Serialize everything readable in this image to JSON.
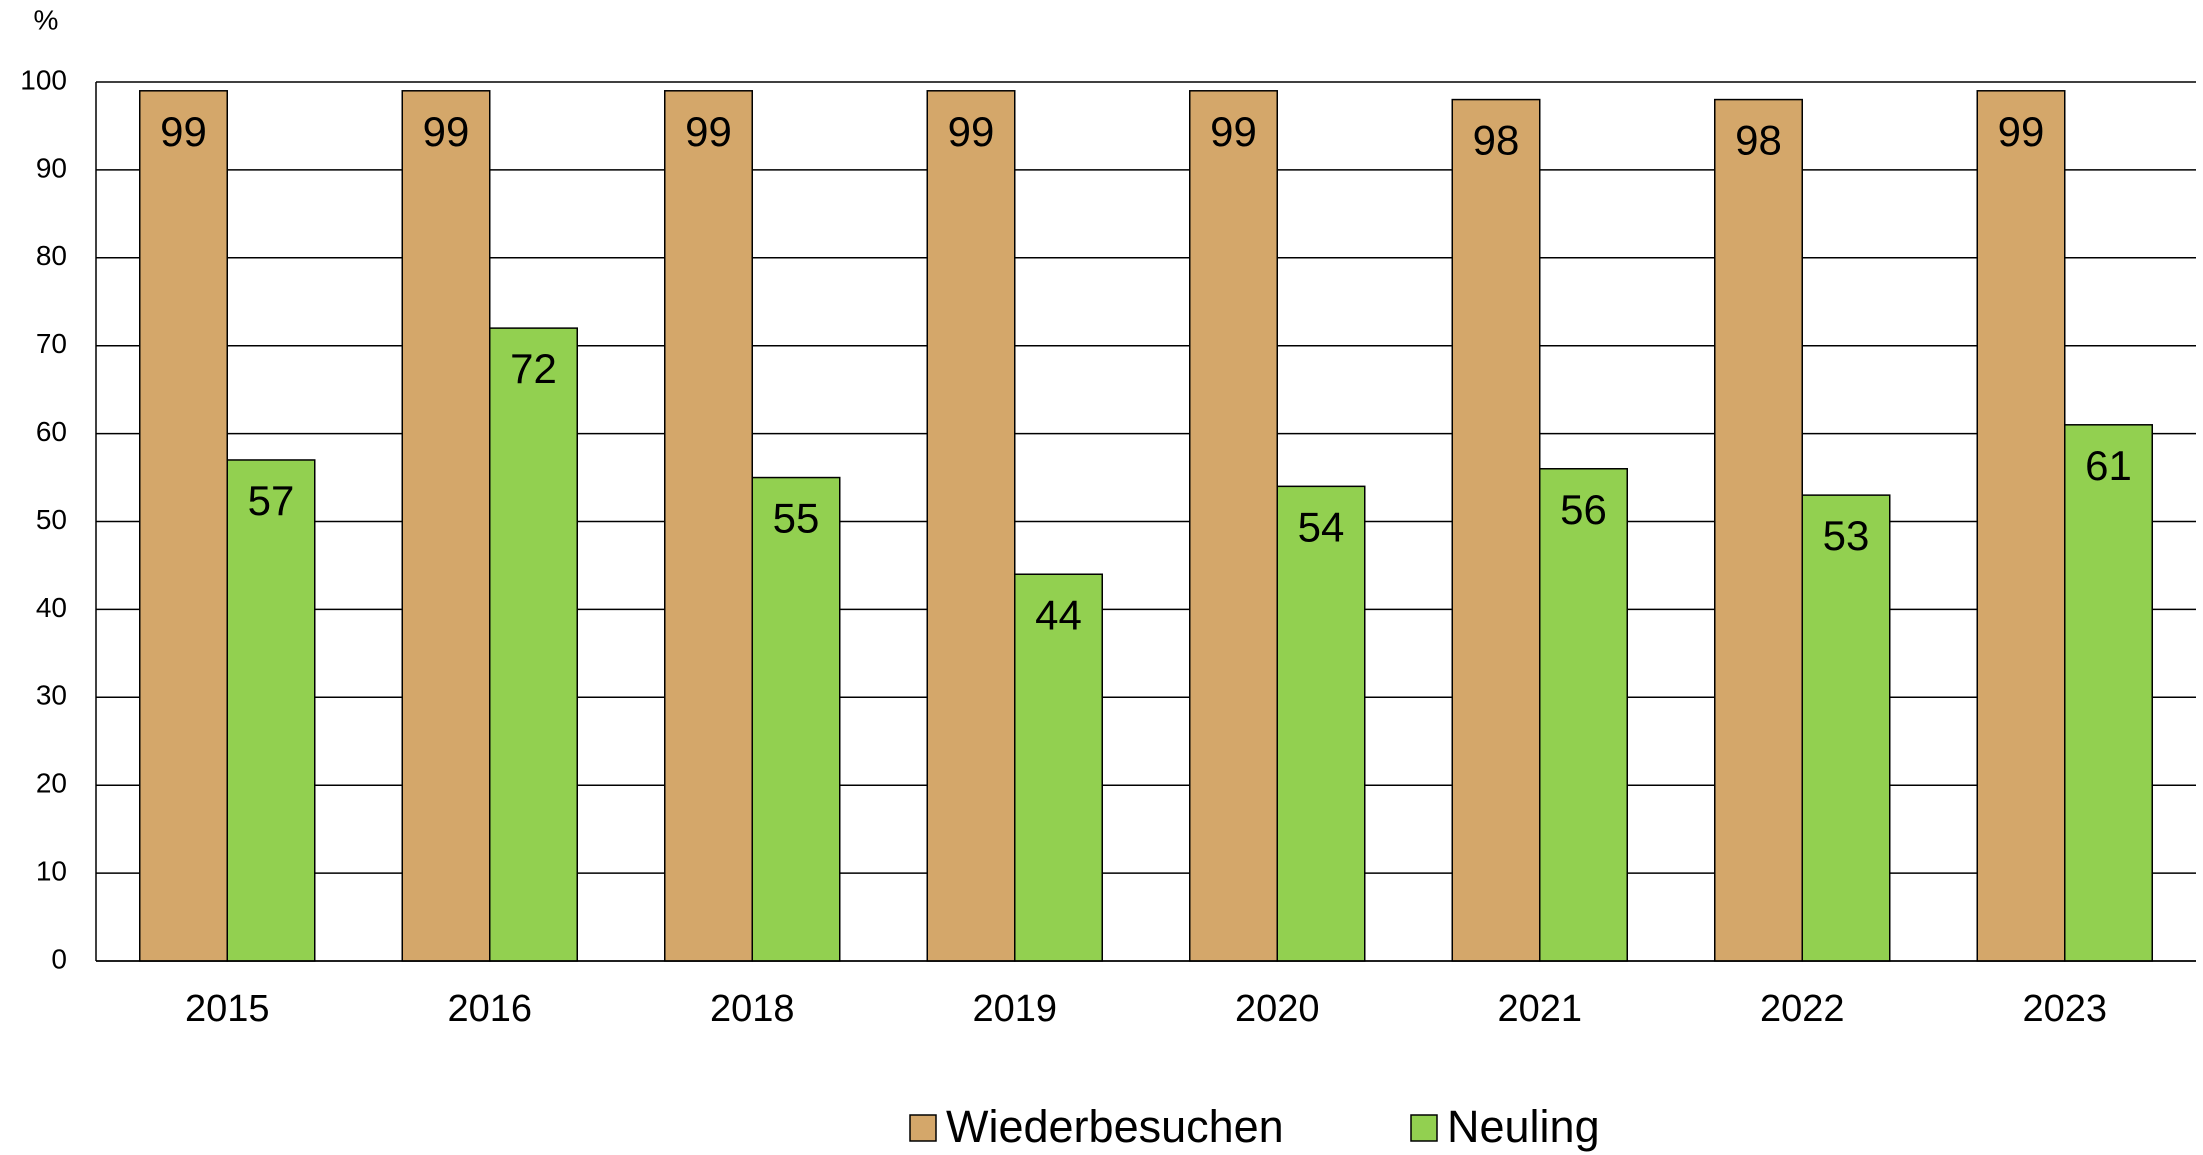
{
  "chart_data": {
    "type": "bar",
    "ylabel": "%",
    "categories": [
      "2015",
      "2016",
      "2018",
      "2019",
      "2020",
      "2021",
      "2022",
      "2023"
    ],
    "series": [
      {
        "name": "Wiederbesuchen",
        "color": "#d4a76a",
        "values": [
          99,
          99,
          99,
          99,
          99,
          98,
          98,
          99
        ]
      },
      {
        "name": "Neuling",
        "color": "#92d050",
        "values": [
          57,
          72,
          55,
          44,
          54,
          56,
          53,
          61
        ]
      }
    ],
    "ylim": [
      0,
      100
    ],
    "yticks": [
      0,
      10,
      20,
      30,
      40,
      50,
      60,
      70,
      80,
      90,
      100
    ],
    "grid": true,
    "legend": "bottom"
  }
}
